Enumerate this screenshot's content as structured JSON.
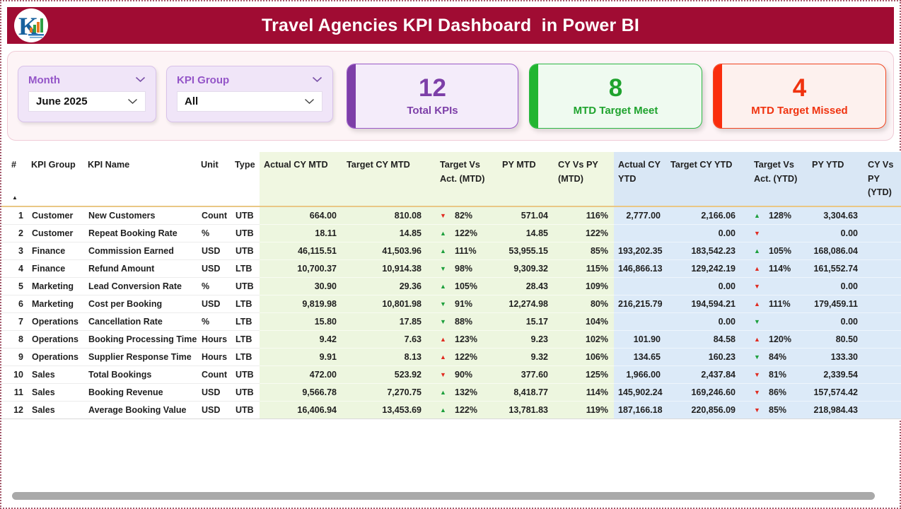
{
  "header": {
    "title": "Travel Agencies KPI Dashboard  in Power BI"
  },
  "filters": {
    "month": {
      "label": "Month",
      "value": "June 2025"
    },
    "kpi_group": {
      "label": "KPI Group",
      "value": "All"
    }
  },
  "cards": [
    {
      "value": "12",
      "label": "Total KPIs",
      "accent": "#7d3fa8"
    },
    {
      "value": "8",
      "label": "MTD Target Meet",
      "accent": "#22b531"
    },
    {
      "value": "4",
      "label": "MTD Target Missed",
      "accent": "#fa2d0d"
    }
  ],
  "colors": {
    "header_bg": "#a00c33",
    "mtd_section_bg": "#edf6df",
    "ytd_section_bg": "#dceaf8",
    "header_underline": "#e9c785",
    "arrow_good": "#1d9f3c",
    "arrow_bad": "#e02b20"
  },
  "table": {
    "sort_indicator": "▲",
    "columns": [
      "#",
      "KPI Group",
      "KPI Name",
      "Unit",
      "Type",
      "Actual CY MTD",
      "Target CY MTD",
      "Target Vs Act. (MTD)",
      "PY MTD",
      "CY Vs PY (MTD)",
      "Actual CY YTD",
      "Target CY YTD",
      "Target Vs Act. (YTD)",
      "PY YTD",
      "CY Vs PY (YTD)"
    ],
    "rows": [
      {
        "n": "1",
        "group": "Customer",
        "name": "New Customers",
        "unit": "Count",
        "type": "UTB",
        "actual_mtd": "664.00",
        "target_mtd": "810.08",
        "tva_mtd": {
          "dir": "down",
          "sent": "bad",
          "pct": "82%"
        },
        "py_mtd": "571.04",
        "cy_py_mtd": "116%",
        "actual_ytd": "2,777.00",
        "target_ytd": "2,166.06",
        "tva_ytd": {
          "dir": "up",
          "sent": "good",
          "pct": "128%"
        },
        "py_ytd": "3,304.63"
      },
      {
        "n": "2",
        "group": "Customer",
        "name": "Repeat Booking Rate",
        "unit": "%",
        "type": "UTB",
        "actual_mtd": "18.11",
        "target_mtd": "14.85",
        "tva_mtd": {
          "dir": "up",
          "sent": "good",
          "pct": "122%"
        },
        "py_mtd": "14.85",
        "cy_py_mtd": "122%",
        "actual_ytd": "",
        "target_ytd": "0.00",
        "tva_ytd": {
          "dir": "down",
          "sent": "bad",
          "pct": ""
        },
        "py_ytd": "0.00"
      },
      {
        "n": "3",
        "group": "Finance",
        "name": "Commission Earned",
        "unit": "USD",
        "type": "UTB",
        "actual_mtd": "46,115.51",
        "target_mtd": "41,503.96",
        "tva_mtd": {
          "dir": "up",
          "sent": "good",
          "pct": "111%"
        },
        "py_mtd": "53,955.15",
        "cy_py_mtd": "85%",
        "actual_ytd": "193,202.35",
        "target_ytd": "183,542.23",
        "tva_ytd": {
          "dir": "up",
          "sent": "good",
          "pct": "105%"
        },
        "py_ytd": "168,086.04"
      },
      {
        "n": "4",
        "group": "Finance",
        "name": "Refund Amount",
        "unit": "USD",
        "type": "LTB",
        "actual_mtd": "10,700.37",
        "target_mtd": "10,914.38",
        "tva_mtd": {
          "dir": "down",
          "sent": "good",
          "pct": "98%"
        },
        "py_mtd": "9,309.32",
        "cy_py_mtd": "115%",
        "actual_ytd": "146,866.13",
        "target_ytd": "129,242.19",
        "tva_ytd": {
          "dir": "up",
          "sent": "bad",
          "pct": "114%"
        },
        "py_ytd": "161,552.74"
      },
      {
        "n": "5",
        "group": "Marketing",
        "name": "Lead Conversion Rate",
        "unit": "%",
        "type": "UTB",
        "actual_mtd": "30.90",
        "target_mtd": "29.36",
        "tva_mtd": {
          "dir": "up",
          "sent": "good",
          "pct": "105%"
        },
        "py_mtd": "28.43",
        "cy_py_mtd": "109%",
        "actual_ytd": "",
        "target_ytd": "0.00",
        "tva_ytd": {
          "dir": "down",
          "sent": "bad",
          "pct": ""
        },
        "py_ytd": "0.00"
      },
      {
        "n": "6",
        "group": "Marketing",
        "name": "Cost per Booking",
        "unit": "USD",
        "type": "LTB",
        "actual_mtd": "9,819.98",
        "target_mtd": "10,801.98",
        "tva_mtd": {
          "dir": "down",
          "sent": "good",
          "pct": "91%"
        },
        "py_mtd": "12,274.98",
        "cy_py_mtd": "80%",
        "actual_ytd": "216,215.79",
        "target_ytd": "194,594.21",
        "tva_ytd": {
          "dir": "up",
          "sent": "bad",
          "pct": "111%"
        },
        "py_ytd": "179,459.11"
      },
      {
        "n": "7",
        "group": "Operations",
        "name": "Cancellation Rate",
        "unit": "%",
        "type": "LTB",
        "actual_mtd": "15.80",
        "target_mtd": "17.85",
        "tva_mtd": {
          "dir": "down",
          "sent": "good",
          "pct": "88%"
        },
        "py_mtd": "15.17",
        "cy_py_mtd": "104%",
        "actual_ytd": "",
        "target_ytd": "0.00",
        "tva_ytd": {
          "dir": "down",
          "sent": "good",
          "pct": ""
        },
        "py_ytd": "0.00"
      },
      {
        "n": "8",
        "group": "Operations",
        "name": "Booking Processing Time",
        "unit": "Hours",
        "type": "LTB",
        "actual_mtd": "9.42",
        "target_mtd": "7.63",
        "tva_mtd": {
          "dir": "up",
          "sent": "bad",
          "pct": "123%"
        },
        "py_mtd": "9.23",
        "cy_py_mtd": "102%",
        "actual_ytd": "101.90",
        "target_ytd": "84.58",
        "tva_ytd": {
          "dir": "up",
          "sent": "bad",
          "pct": "120%"
        },
        "py_ytd": "80.50"
      },
      {
        "n": "9",
        "group": "Operations",
        "name": "Supplier Response Time",
        "unit": "Hours",
        "type": "LTB",
        "actual_mtd": "9.91",
        "target_mtd": "8.13",
        "tva_mtd": {
          "dir": "up",
          "sent": "bad",
          "pct": "122%"
        },
        "py_mtd": "9.32",
        "cy_py_mtd": "106%",
        "actual_ytd": "134.65",
        "target_ytd": "160.23",
        "tva_ytd": {
          "dir": "down",
          "sent": "good",
          "pct": "84%"
        },
        "py_ytd": "133.30"
      },
      {
        "n": "10",
        "group": "Sales",
        "name": "Total Bookings",
        "unit": "Count",
        "type": "UTB",
        "actual_mtd": "472.00",
        "target_mtd": "523.92",
        "tva_mtd": {
          "dir": "down",
          "sent": "bad",
          "pct": "90%"
        },
        "py_mtd": "377.60",
        "cy_py_mtd": "125%",
        "actual_ytd": "1,966.00",
        "target_ytd": "2,437.84",
        "tva_ytd": {
          "dir": "down",
          "sent": "bad",
          "pct": "81%"
        },
        "py_ytd": "2,339.54"
      },
      {
        "n": "11",
        "group": "Sales",
        "name": "Booking Revenue",
        "unit": "USD",
        "type": "UTB",
        "actual_mtd": "9,566.78",
        "target_mtd": "7,270.75",
        "tva_mtd": {
          "dir": "up",
          "sent": "good",
          "pct": "132%"
        },
        "py_mtd": "8,418.77",
        "cy_py_mtd": "114%",
        "actual_ytd": "145,902.24",
        "target_ytd": "169,246.60",
        "tva_ytd": {
          "dir": "down",
          "sent": "bad",
          "pct": "86%"
        },
        "py_ytd": "157,574.42"
      },
      {
        "n": "12",
        "group": "Sales",
        "name": "Average Booking Value",
        "unit": "USD",
        "type": "UTB",
        "actual_mtd": "16,406.94",
        "target_mtd": "13,453.69",
        "tva_mtd": {
          "dir": "up",
          "sent": "good",
          "pct": "122%"
        },
        "py_mtd": "13,781.83",
        "cy_py_mtd": "119%",
        "actual_ytd": "187,166.18",
        "target_ytd": "220,856.09",
        "tva_ytd": {
          "dir": "down",
          "sent": "bad",
          "pct": "85%"
        },
        "py_ytd": "218,984.43"
      }
    ]
  }
}
